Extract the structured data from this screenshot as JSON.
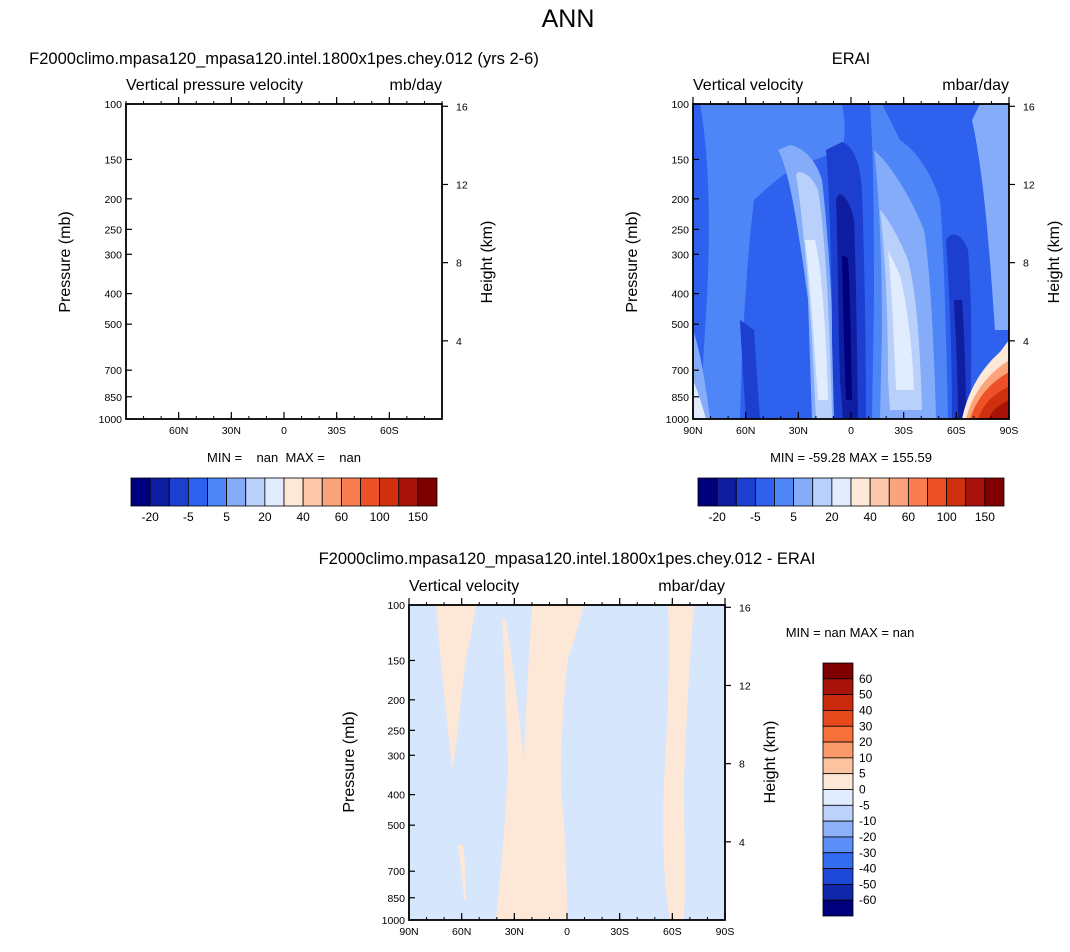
{
  "title": "ANN",
  "chart_data": [
    {
      "type": "heatmap",
      "id": "test",
      "plot_title": "F2000climo.mpasa120_mpasa120.intel.1800x1pes.chey.012 (yrs 2-6)",
      "left_string": "Vertical pressure velocity",
      "right_string": "mb/day",
      "ylabel": "Pressure (mb)",
      "y2label": "Height (km)",
      "y_ticks": [
        100,
        150,
        200,
        250,
        300,
        400,
        500,
        700,
        850,
        1000
      ],
      "y2_ticks": [
        4,
        8,
        12,
        16
      ],
      "x_ticks": [
        "60N",
        "30N",
        "0",
        "30S",
        "60S"
      ],
      "stats": "MIN =    nan  MAX =    nan",
      "colorbar": {
        "orientation": "horizontal",
        "labels": [
          "-20",
          "-5",
          "5",
          "20",
          "40",
          "60",
          "100",
          "150"
        ]
      }
    },
    {
      "type": "heatmap",
      "id": "reference",
      "plot_title": "ERAI",
      "left_string": "Vertical velocity",
      "right_string": "mbar/day",
      "ylabel": "Pressure (mb)",
      "y2label": "Height (km)",
      "y_ticks": [
        100,
        150,
        200,
        250,
        300,
        400,
        500,
        700,
        850,
        1000
      ],
      "y2_ticks": [
        4,
        8,
        12,
        16
      ],
      "x_ticks": [
        "90N",
        "60N",
        "30N",
        "0",
        "30S",
        "60S",
        "90S"
      ],
      "stats": "MIN = -59.28  MAX = 155.59",
      "colorbar": {
        "orientation": "horizontal",
        "labels": [
          "-20",
          "-5",
          "5",
          "20",
          "40",
          "60",
          "100",
          "150"
        ]
      }
    },
    {
      "type": "heatmap",
      "id": "difference",
      "plot_title": "F2000climo.mpasa120_mpasa120.intel.1800x1pes.chey.012 - ERAI",
      "left_string": "Vertical velocity",
      "right_string": "mbar/day",
      "ylabel": "Pressure (mb)",
      "y2label": "Height (km)",
      "y_ticks": [
        100,
        150,
        200,
        250,
        300,
        400,
        500,
        700,
        850,
        1000
      ],
      "y2_ticks": [
        4,
        8,
        12,
        16
      ],
      "x_ticks": [
        "90N",
        "60N",
        "30N",
        "0",
        "30S",
        "60S",
        "90S"
      ],
      "stats": "MIN =    nan  MAX =    nan",
      "colorbar": {
        "orientation": "vertical",
        "labels": [
          "60",
          "50",
          "40",
          "30",
          "20",
          "10",
          "5",
          "0",
          "-5",
          "-10",
          "-20",
          "-30",
          "-40",
          "-50",
          "-60"
        ]
      }
    }
  ],
  "palettes": {
    "main": [
      "#00007f",
      "#0f1ea0",
      "#1d3fd0",
      "#2e62ee",
      "#4f86f7",
      "#84acf9",
      "#b9d0fb",
      "#e1edfe",
      "#fde7d7",
      "#fcc7aa",
      "#fba47b",
      "#f87e51",
      "#ee5128",
      "#d1300f",
      "#a8140a",
      "#7f0000"
    ],
    "diff": [
      "#7f0000",
      "#a8140a",
      "#c92a0c",
      "#e64a1c",
      "#f77039",
      "#fa9a6a",
      "#fcc3a0",
      "#fde7d7",
      "#e1edfe",
      "#bcd2fb",
      "#8cb1f9",
      "#5c8ff7",
      "#346cf0",
      "#1d48d8",
      "#0f27a8",
      "#00007f"
    ]
  }
}
